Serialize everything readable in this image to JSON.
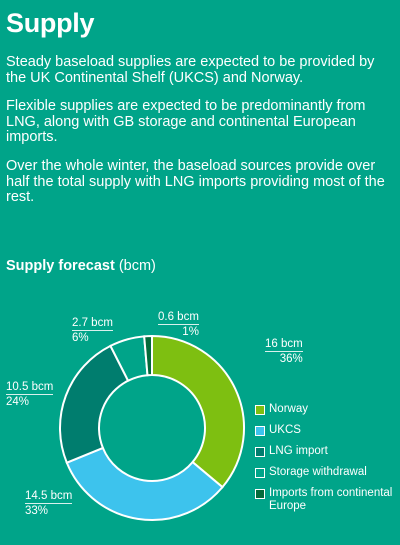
{
  "header": {
    "title": "Supply"
  },
  "paragraphs": [
    "Steady baseload supplies are expected to be provided by the UK Continental Shelf (UKCS) and Norway.",
    "Flexible supplies are expected to be predominantly from LNG, along with GB storage and continental European imports.",
    "Over the whole winter, the baseload sources provide over half the total supply with LNG imports providing most of the rest."
  ],
  "chart_title": {
    "bold": "Supply forecast",
    "unit": "(bcm)"
  },
  "chart_data": {
    "type": "pie",
    "title": "Supply forecast (bcm)",
    "donut": true,
    "legend_position": "right",
    "slices": [
      {
        "name": "Norway",
        "value": 16,
        "value_label": "16 bcm",
        "pct_label": "36%",
        "color": "#7ebf11"
      },
      {
        "name": "UKCS",
        "value": 14.5,
        "value_label": "14.5 bcm",
        "pct_label": "33%",
        "color": "#3dc3ed"
      },
      {
        "name": "LNG import",
        "value": 10.5,
        "value_label": "10.5 bcm",
        "pct_label": "24%",
        "color": "#007d6e"
      },
      {
        "name": "Storage withdrawal",
        "value": 2.7,
        "value_label": "2.7 bcm",
        "pct_label": "6%",
        "color": "#00a489"
      },
      {
        "name": "Imports from continental Europe",
        "value": 0.6,
        "value_label": "0.6 bcm",
        "pct_label": "1%",
        "color": "#046b3b"
      }
    ]
  }
}
